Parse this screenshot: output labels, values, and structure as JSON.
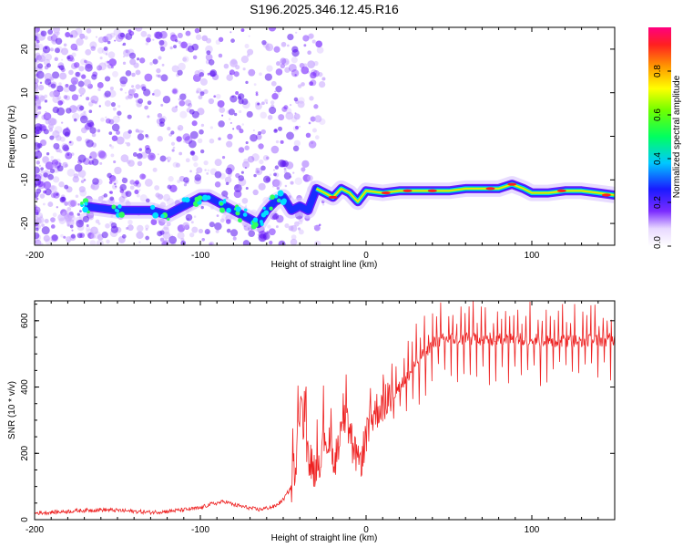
{
  "title": "S196.2025.346.12.45.R16",
  "chart_data": [
    {
      "type": "heatmap",
      "xlabel": "Height of straight line (km)",
      "ylabel": "Frequency (Hz)",
      "xlim": [
        -200,
        150
      ],
      "ylim": [
        -25,
        25
      ],
      "xticks": [
        -200,
        -100,
        0,
        100
      ],
      "yticks": [
        20,
        10,
        0,
        -10,
        -20
      ],
      "colorbar": {
        "label": "Normalized spectral amplitude",
        "range": [
          0,
          1
        ],
        "ticks": [
          0.0,
          0.2,
          0.4,
          0.6,
          0.8
        ]
      },
      "ridge": {
        "description_points_x": [
          -170,
          -150,
          -130,
          -120,
          -110,
          -100,
          -95,
          -90,
          -85,
          -80,
          -75,
          -70,
          -65,
          -60,
          -55,
          -50,
          -45,
          -40,
          -35,
          -30,
          -25,
          -20,
          -15,
          -10,
          -5,
          0,
          10,
          20,
          30,
          40,
          50,
          60,
          70,
          80,
          88,
          95,
          100,
          110,
          120,
          130,
          140,
          150
        ],
        "frequency_hz": [
          -16,
          -17,
          -17,
          -18,
          -16,
          -14,
          -14,
          -15,
          -16,
          -17,
          -18,
          -19,
          -20,
          -17,
          -15,
          -14,
          -17,
          -16,
          -17,
          -12,
          -13,
          -14,
          -12,
          -13,
          -15,
          -12.5,
          -13,
          -12.5,
          -12.5,
          -12.5,
          -12.5,
          -12,
          -12,
          -12,
          -11,
          -12,
          -13,
          -13,
          -12.5,
          -12.5,
          -13,
          -13.5
        ]
      }
    },
    {
      "type": "line",
      "xlabel": "Height of straight line (km)",
      "ylabel": "SNR (10 * v/v)",
      "xlim": [
        -200,
        150
      ],
      "ylim": [
        0,
        660
      ],
      "xticks": [
        -200,
        -100,
        0,
        100
      ],
      "yticks": [
        0,
        200,
        400,
        600
      ],
      "series": [
        {
          "name": "SNR",
          "color": "#ee2222",
          "x": [
            -200,
            -190,
            -180,
            -170,
            -160,
            -150,
            -140,
            -130,
            -120,
            -110,
            -100,
            -95,
            -90,
            -85,
            -80,
            -75,
            -70,
            -65,
            -60,
            -55,
            -50,
            -45,
            -42,
            -40,
            -38,
            -35,
            -32,
            -30,
            -27,
            -25,
            -22,
            -20,
            -17,
            -15,
            -12,
            -10,
            -7,
            -5,
            -2,
            0,
            3,
            5,
            8,
            10,
            15,
            20,
            25,
            30,
            35,
            40,
            45,
            50,
            60,
            70,
            80,
            90,
            100,
            110,
            120,
            130,
            140,
            150
          ],
          "y": [
            20,
            22,
            25,
            28,
            30,
            28,
            25,
            22,
            25,
            30,
            35,
            45,
            50,
            55,
            45,
            40,
            35,
            30,
            35,
            40,
            60,
            100,
            200,
            340,
            300,
            200,
            150,
            160,
            200,
            260,
            220,
            180,
            230,
            280,
            300,
            240,
            220,
            160,
            200,
            260,
            300,
            320,
            340,
            350,
            370,
            400,
            430,
            470,
            500,
            530,
            540,
            545,
            545,
            545,
            545,
            545,
            545,
            540,
            540,
            540,
            540,
            545
          ]
        }
      ]
    }
  ]
}
